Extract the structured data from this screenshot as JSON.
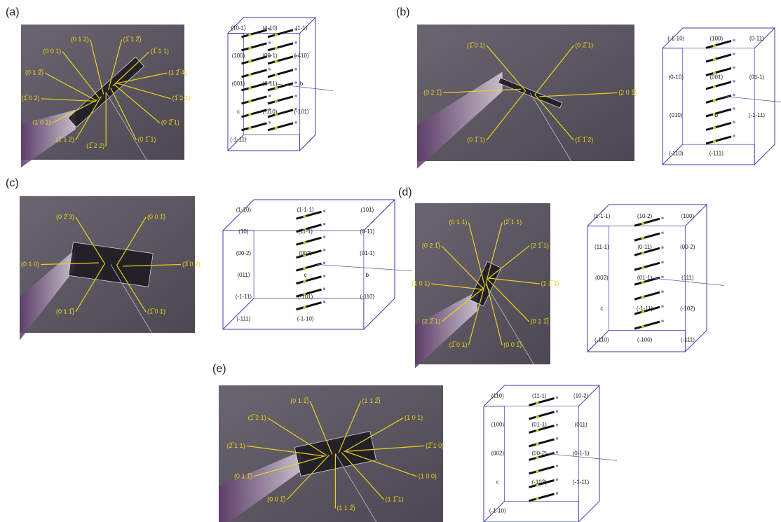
{
  "panels": [
    {
      "label": "(a)",
      "photo_labels": [
        "(1̅ 1 2̅)",
        "(1̅ 1 1)",
        "(1 2̅ 4)",
        "(1̅ 2 1)",
        "(0 2̅ 1)",
        "(0 1̅ 1)",
        "(1̅ 2 2)",
        "(1̅ 1 2)",
        "(1 0 1)",
        "(1̅ 0 2)",
        "(0 1 2̅)",
        "(0 0 1)",
        "(0 1 2)"
      ],
      "model_labels": [
        "(10-1)",
        "(4-10)",
        "(1-1)",
        "(100)",
        "(00-1)",
        "(-410)",
        "(001)",
        "(0-11)",
        "b",
        "c",
        "(-110)",
        "(-101)",
        "(-1-11)"
      ]
    },
    {
      "label": "(b)",
      "photo_labels": [
        "(0 2̅ 1)",
        "(2 0 1̅)",
        "(1̅ 1̅ 2)",
        "(0 1̅ 1)",
        "(0 2 1̅)",
        "(1̅ 0 1)"
      ],
      "model_labels": [
        "(-1-10)",
        "(100)",
        "(0-11)",
        "(0-10)",
        "(001)",
        "(01-1)",
        "(010)",
        "b",
        "(-1-11)",
        "(-110)",
        "(-111)"
      ]
    },
    {
      "label": "(c)",
      "photo_labels": [
        "(0 0 1̅)",
        "(3̅ 0 2)",
        "(1̅ 0 1)",
        "(0 1 1̅)",
        "(0 1 0)",
        "(0 2̅ 3)"
      ],
      "model_labels": [
        "(1-10)",
        "(1-1-1)",
        "(101)",
        "(10)",
        "(11-1)",
        "(0-11)",
        "(00-2)",
        "(002)",
        "(01-1)",
        "(011)",
        "c",
        "b",
        "(-1-11)",
        "(-101)",
        "(-110)",
        "(-111)",
        "(-1-10)"
      ]
    },
    {
      "label": "(d)",
      "photo_labels": [
        "(2̅ 1 1)",
        "(2 1̅ 1)",
        "(1 1̅ 1)",
        "(0 1 1̅)",
        "(0 0 1̅)",
        "(1̅ 0 1)",
        "(2 2̅ 1)",
        "(1 0 1)",
        "(0 2 1̅)",
        "(0 1 1)"
      ],
      "model_labels": [
        "(1-1-1)",
        "(10-2)",
        "(100)",
        "(11-1)",
        "(0-11)",
        "(00-2)",
        "(002)",
        "(01-1)",
        "(111)",
        "c",
        "(-1-11)",
        "(-102)",
        "(-110)",
        "(-100)",
        "(-111)"
      ]
    },
    {
      "label": "(e)",
      "photo_labels": [
        "(1 1 2̅)",
        "(1 0 1)",
        "(2̅ 1 0)",
        "(1 0 0)",
        "(1 1̅ 1)",
        "(1 1 2̅)",
        "(0 0 1̅)",
        "(0 1 1̅)",
        "(2̅ 1 1)",
        "(1̅ 2 1)",
        "(0 1 1̅)"
      ],
      "model_labels": [
        "(110)",
        "(11-1)",
        "(10-2)",
        "(100)",
        "(01-1)",
        "(011)",
        "(002)",
        "(00-2)",
        "(0-1-1)",
        "c",
        "(-102)",
        "(-1-11)",
        "(-1-10)"
      ]
    }
  ]
}
